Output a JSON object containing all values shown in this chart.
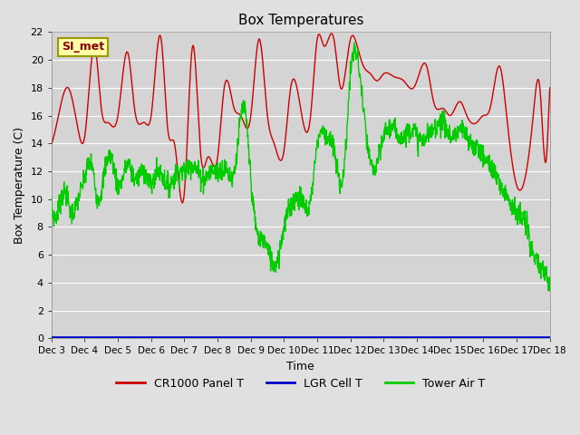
{
  "title": "Box Temperatures",
  "xlabel": "Time",
  "ylabel": "Box Temperature (C)",
  "ylim": [
    0,
    22
  ],
  "yticks": [
    0,
    2,
    4,
    6,
    8,
    10,
    12,
    14,
    16,
    18,
    20,
    22
  ],
  "x_tick_labels": [
    "Dec 3",
    "Dec 4",
    "Dec 5",
    "Dec 6",
    "Dec 7",
    "Dec 8",
    "Dec 9",
    "Dec 10",
    "Dec 11",
    "Dec 12",
    "Dec 13",
    "Dec 14",
    "Dec 15",
    "Dec 16",
    "Dec 17",
    "Dec 18"
  ],
  "legend_labels": [
    "CR1000 Panel T",
    "LGR Cell T",
    "Tower Air T"
  ],
  "legend_colors": [
    "#cc0000",
    "#0000cc",
    "#00cc00"
  ],
  "annotation_text": "SI_met",
  "fig_bg": "#e0e0e0",
  "ax_bg": "#d4d4d4",
  "grid_color": "#ffffff"
}
